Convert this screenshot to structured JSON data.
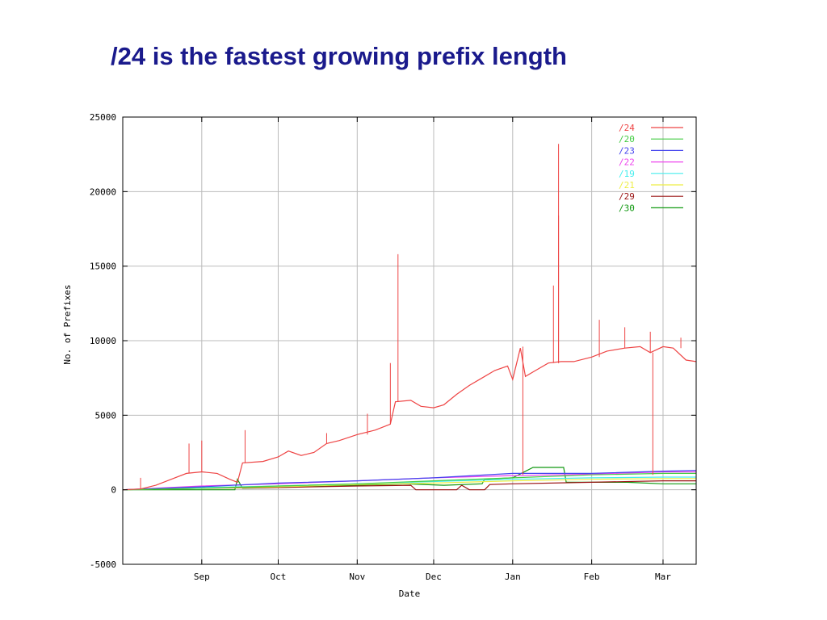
{
  "slide": {
    "title": "/24 is the fastest growing prefix length"
  },
  "chart_data": {
    "type": "line",
    "xlabel": "Date",
    "ylabel": "No. of Prefixes",
    "ylim": [
      -5000,
      25000
    ],
    "yticks": [
      -5000,
      0,
      5000,
      10000,
      15000,
      20000,
      25000
    ],
    "ytick_labels": [
      "-5000",
      "0",
      "5000",
      "10000",
      "15000",
      "20000",
      "25000"
    ],
    "xlim": [
      "2000-08-01",
      "2001-03-14"
    ],
    "xticks": [
      {
        "label": "Sep",
        "date": "2000-09-01"
      },
      {
        "label": "Oct",
        "date": "2000-10-01"
      },
      {
        "label": "Nov",
        "date": "2000-11-01"
      },
      {
        "label": "Dec",
        "date": "2000-12-01"
      },
      {
        "label": "Jan",
        "date": "2001-01-01"
      },
      {
        "label": "Feb",
        "date": "2001-02-01"
      },
      {
        "label": "Mar",
        "date": "2001-03-01"
      }
    ],
    "grid": true,
    "legend_position": "top-right",
    "series": [
      {
        "name": "/24",
        "color": "#ee4444",
        "points": [
          [
            "2000-08-01",
            0
          ],
          [
            "2000-08-08",
            50
          ],
          [
            "2000-08-14",
            300
          ],
          [
            "2000-08-20",
            700
          ],
          [
            "2000-08-26",
            1100
          ],
          [
            "2000-09-01",
            1200
          ],
          [
            "2000-09-07",
            1100
          ],
          [
            "2000-09-12",
            700
          ],
          [
            "2000-09-15",
            500
          ],
          [
            "2000-09-17",
            1800
          ],
          [
            "2000-09-25",
            1900
          ],
          [
            "2000-10-01",
            2200
          ],
          [
            "2000-10-05",
            2600
          ],
          [
            "2000-10-10",
            2300
          ],
          [
            "2000-10-15",
            2500
          ],
          [
            "2000-10-20",
            3100
          ],
          [
            "2000-10-25",
            3300
          ],
          [
            "2000-11-01",
            3700
          ],
          [
            "2000-11-08",
            4000
          ],
          [
            "2000-11-14",
            4400
          ],
          [
            "2000-11-16",
            5900
          ],
          [
            "2000-11-22",
            6000
          ],
          [
            "2000-11-26",
            5600
          ],
          [
            "2000-12-01",
            5500
          ],
          [
            "2000-12-05",
            5700
          ],
          [
            "2000-12-10",
            6400
          ],
          [
            "2000-12-15",
            7000
          ],
          [
            "2000-12-20",
            7500
          ],
          [
            "2000-12-25",
            8000
          ],
          [
            "2000-12-30",
            8300
          ],
          [
            "2001-01-01",
            7400
          ],
          [
            "2001-01-04",
            9500
          ],
          [
            "2001-01-06",
            7600
          ],
          [
            "2001-01-10",
            8000
          ],
          [
            "2001-01-15",
            8500
          ],
          [
            "2001-01-20",
            8600
          ],
          [
            "2001-01-25",
            8600
          ],
          [
            "2001-02-01",
            8900
          ],
          [
            "2001-02-07",
            9300
          ],
          [
            "2001-02-14",
            9500
          ],
          [
            "2001-02-20",
            9600
          ],
          [
            "2001-02-24",
            9200
          ],
          [
            "2001-03-01",
            9600
          ],
          [
            "2001-03-05",
            9500
          ],
          [
            "2001-03-10",
            8700
          ],
          [
            "2001-03-14",
            8600
          ]
        ],
        "spikes": [
          [
            "2000-08-08",
            800
          ],
          [
            "2000-08-27",
            3100
          ],
          [
            "2000-09-01",
            3300
          ],
          [
            "2000-09-18",
            4000
          ],
          [
            "2000-10-20",
            3800
          ],
          [
            "2000-11-05",
            5100
          ],
          [
            "2000-11-14",
            8500
          ],
          [
            "2000-11-17",
            15800
          ],
          [
            "2001-01-05",
            1000
          ],
          [
            "2001-01-05",
            9600
          ],
          [
            "2001-01-17",
            13700
          ],
          [
            "2001-01-19",
            18400
          ],
          [
            "2001-01-19",
            23200
          ],
          [
            "2001-02-04",
            11400
          ],
          [
            "2001-02-14",
            10900
          ],
          [
            "2001-02-24",
            10600
          ],
          [
            "2001-02-25",
            1000
          ],
          [
            "2001-03-08",
            10200
          ]
        ]
      },
      {
        "name": "/20",
        "color": "#44cc44",
        "points": [
          [
            "2000-08-01",
            0
          ],
          [
            "2000-09-01",
            100
          ],
          [
            "2000-10-01",
            250
          ],
          [
            "2000-11-01",
            400
          ],
          [
            "2000-12-01",
            600
          ],
          [
            "2001-01-01",
            800
          ],
          [
            "2001-02-01",
            1000
          ],
          [
            "2001-03-01",
            1100
          ],
          [
            "2001-03-14",
            1100
          ]
        ]
      },
      {
        "name": "/23",
        "color": "#4444ee",
        "points": [
          [
            "2000-08-01",
            0
          ],
          [
            "2000-09-01",
            200
          ],
          [
            "2000-10-01",
            450
          ],
          [
            "2000-11-01",
            600
          ],
          [
            "2000-12-01",
            800
          ],
          [
            "2001-01-01",
            1100
          ],
          [
            "2001-02-01",
            1100
          ],
          [
            "2001-03-01",
            1250
          ],
          [
            "2001-03-14",
            1300
          ]
        ]
      },
      {
        "name": "/22",
        "color": "#ee44ee",
        "points": [
          [
            "2000-08-01",
            0
          ],
          [
            "2000-09-01",
            250
          ],
          [
            "2000-10-01",
            400
          ],
          [
            "2000-11-01",
            600
          ],
          [
            "2000-12-01",
            800
          ],
          [
            "2001-01-01",
            950
          ],
          [
            "2001-02-01",
            1050
          ],
          [
            "2001-03-01",
            1200
          ],
          [
            "2001-03-14",
            1200
          ]
        ]
      },
      {
        "name": "/19",
        "color": "#44eeee",
        "points": [
          [
            "2000-08-01",
            0
          ],
          [
            "2000-09-01",
            150
          ],
          [
            "2000-10-01",
            250
          ],
          [
            "2000-11-01",
            400
          ],
          [
            "2000-12-01",
            550
          ],
          [
            "2001-01-01",
            700
          ],
          [
            "2001-02-01",
            800
          ],
          [
            "2001-03-01",
            850
          ],
          [
            "2001-03-14",
            850
          ]
        ]
      },
      {
        "name": "/21",
        "color": "#eeee44",
        "points": [
          [
            "2000-08-01",
            0
          ],
          [
            "2000-09-01",
            100
          ],
          [
            "2000-10-01",
            200
          ],
          [
            "2000-11-01",
            350
          ],
          [
            "2000-12-01",
            450
          ],
          [
            "2001-01-01",
            600
          ],
          [
            "2001-02-01",
            700
          ],
          [
            "2001-03-01",
            750
          ],
          [
            "2001-03-14",
            750
          ]
        ]
      },
      {
        "name": "/29",
        "color": "#991111",
        "points": [
          [
            "2000-08-01",
            0
          ],
          [
            "2000-09-01",
            100
          ],
          [
            "2000-10-01",
            150
          ],
          [
            "2000-11-01",
            250
          ],
          [
            "2000-11-22",
            300
          ],
          [
            "2000-11-24",
            0
          ],
          [
            "2000-12-10",
            0
          ],
          [
            "2000-12-12",
            300
          ],
          [
            "2000-12-15",
            0
          ],
          [
            "2000-12-21",
            0
          ],
          [
            "2000-12-23",
            350
          ],
          [
            "2001-01-01",
            400
          ],
          [
            "2001-02-01",
            500
          ],
          [
            "2001-03-01",
            600
          ],
          [
            "2001-03-14",
            600
          ]
        ]
      },
      {
        "name": "/30",
        "color": "#119911",
        "points": [
          [
            "2000-08-01",
            0
          ],
          [
            "2000-09-14",
            0
          ],
          [
            "2000-09-15",
            700
          ],
          [
            "2000-09-17",
            100
          ],
          [
            "2000-10-01",
            150
          ],
          [
            "2000-11-01",
            300
          ],
          [
            "2000-11-20",
            400
          ],
          [
            "2000-12-05",
            300
          ],
          [
            "2000-12-20",
            400
          ],
          [
            "2000-12-21",
            700
          ],
          [
            "2001-01-01",
            800
          ],
          [
            "2001-01-09",
            1500
          ],
          [
            "2001-01-21",
            1500
          ],
          [
            "2001-01-22",
            500
          ],
          [
            "2001-02-15",
            500
          ],
          [
            "2001-03-01",
            400
          ],
          [
            "2001-03-14",
            400
          ]
        ]
      }
    ]
  }
}
